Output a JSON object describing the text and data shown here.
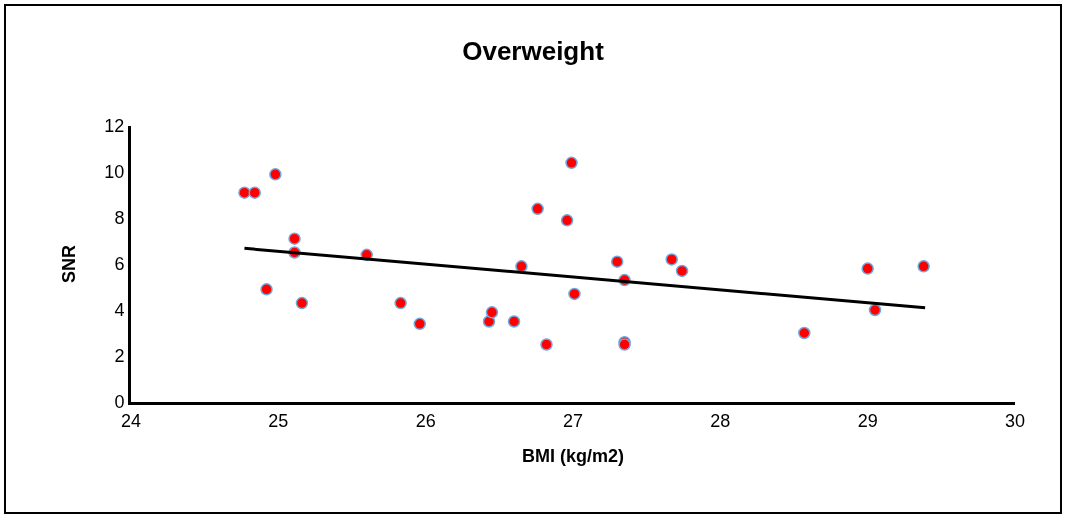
{
  "chart_data": {
    "type": "scatter",
    "title": "Overweight",
    "xlabel": "BMI (kg/m2)",
    "ylabel": "SNR",
    "xlim": [
      24,
      30
    ],
    "xticks": [
      24,
      25,
      26,
      27,
      28,
      29,
      30
    ],
    "ylim": [
      0,
      12
    ],
    "yticks": [
      0,
      2,
      4,
      6,
      8,
      10,
      12
    ],
    "grid": false,
    "series": [
      {
        "marker": "circle",
        "color": "#ff0000",
        "x": [
          24.77,
          24.84,
          24.98,
          25.11,
          25.11,
          24.92,
          25.16,
          25.6,
          25.83,
          25.96,
          26.43,
          26.45,
          26.6,
          26.65,
          26.76,
          26.82,
          26.96,
          26.99,
          27.01,
          27.3,
          27.35,
          27.35,
          27.35,
          27.67,
          27.74,
          28.57,
          29.0,
          29.05,
          29.38
        ],
        "values": [
          9.1,
          9.1,
          9.9,
          7.1,
          6.5,
          4.9,
          4.3,
          6.4,
          4.3,
          3.4,
          3.5,
          3.9,
          3.5,
          5.9,
          8.4,
          2.5,
          7.9,
          10.4,
          4.7,
          6.1,
          5.3,
          2.6,
          2.5,
          6.2,
          5.7,
          3.0,
          5.8,
          4.0,
          5.9
        ]
      },
      {
        "type": "line",
        "color": "#000000",
        "line_style": "solid",
        "x": [
          24.77,
          29.39
        ],
        "values": [
          6.68,
          4.1
        ]
      }
    ]
  }
}
